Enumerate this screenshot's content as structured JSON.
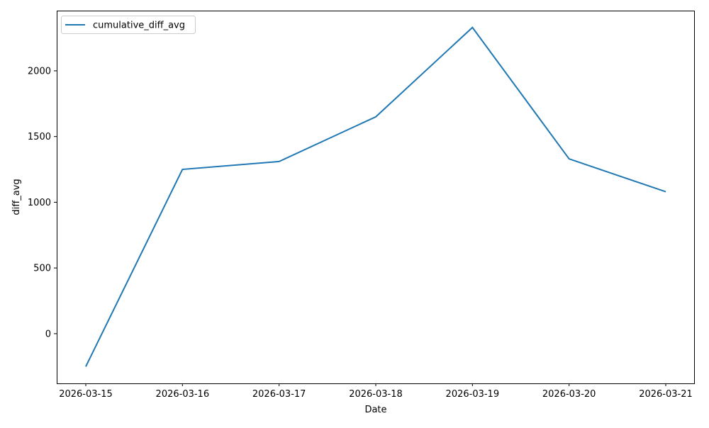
{
  "chart_data": {
    "type": "line",
    "title": "",
    "xlabel": "Date",
    "ylabel": "diff_avg",
    "x": [
      "2026-03-15",
      "2026-03-16",
      "2026-03-17",
      "2026-03-18",
      "2026-03-19",
      "2026-03-20",
      "2026-03-21"
    ],
    "series": [
      {
        "name": "cumulative_diff_avg",
        "color": "#1f77b4",
        "values": [
          -250,
          1250,
          1310,
          1650,
          2330,
          1330,
          1080
        ]
      }
    ],
    "yticks": [
      0,
      500,
      1000,
      1500,
      2000
    ],
    "ylim": [
      -378,
      2458
    ],
    "grid": false,
    "legend": "upper left"
  }
}
